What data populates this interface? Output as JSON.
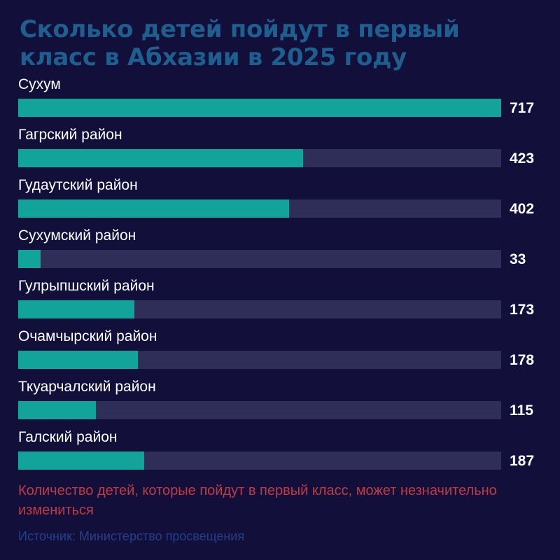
{
  "chart_data": {
    "type": "bar",
    "orientation": "horizontal",
    "title": "Сколько детей пойдут в первый класс в Абхазии в 2025 году",
    "categories": [
      "Сухум",
      "Гагрский район",
      "Гудаутский район",
      "Сухумский район",
      "Гулрыпшский район",
      "Очамчырский район",
      "Ткуарчалский район",
      "Галский район"
    ],
    "values": [
      717,
      423,
      402,
      33,
      173,
      178,
      115,
      187
    ],
    "xlim": [
      0,
      717
    ],
    "grid": false,
    "legend": "none",
    "colors": {
      "background": "#12103a",
      "bar": "#12a39a",
      "track": "#2e2e58",
      "title": "#1f5f8f",
      "note": "#c03a46",
      "source": "#243e8c"
    }
  },
  "note": "Количество детей, которые пойдут в первый класс, может незначительно измениться",
  "source": "Источник: Министерство просвещения"
}
